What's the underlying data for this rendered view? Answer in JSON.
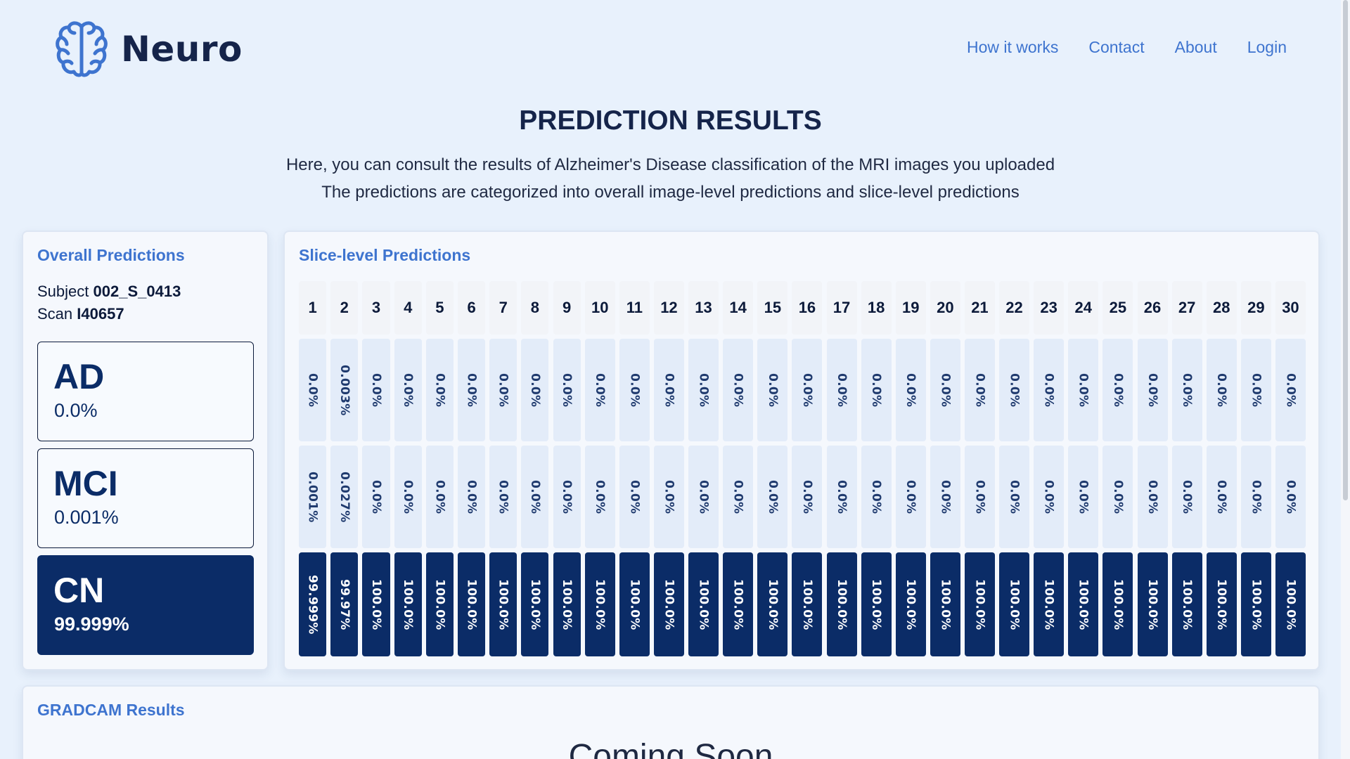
{
  "header": {
    "brand": "Neuro",
    "nav": [
      "How it works",
      "Contact",
      "About",
      "Login"
    ]
  },
  "page": {
    "title": "PREDICTION RESULTS",
    "subtitle_1": "Here, you can consult the results of Alzheimer's Disease classification of the MRI images you uploaded",
    "subtitle_2": "The predictions are categorized into overall image-level predictions and slice-level predictions"
  },
  "overall": {
    "heading": "Overall Predictions",
    "subject_label": "Subject",
    "subject_value": "002_S_0413",
    "scan_label": "Scan",
    "scan_value": "I40657",
    "predictions": [
      {
        "label": "AD",
        "value": "0.0%",
        "active": false
      },
      {
        "label": "MCI",
        "value": "0.001%",
        "active": false
      },
      {
        "label": "CN",
        "value": "99.999%",
        "active": true
      }
    ]
  },
  "slices": {
    "heading": "Slice-level Predictions",
    "columns": [
      "1",
      "2",
      "3",
      "4",
      "5",
      "6",
      "7",
      "8",
      "9",
      "10",
      "11",
      "12",
      "13",
      "14",
      "15",
      "16",
      "17",
      "18",
      "19",
      "20",
      "21",
      "22",
      "23",
      "24",
      "25",
      "26",
      "27",
      "28",
      "29",
      "30"
    ],
    "ad": [
      "0.0%",
      "0.003%",
      "0.0%",
      "0.0%",
      "0.0%",
      "0.0%",
      "0.0%",
      "0.0%",
      "0.0%",
      "0.0%",
      "0.0%",
      "0.0%",
      "0.0%",
      "0.0%",
      "0.0%",
      "0.0%",
      "0.0%",
      "0.0%",
      "0.0%",
      "0.0%",
      "0.0%",
      "0.0%",
      "0.0%",
      "0.0%",
      "0.0%",
      "0.0%",
      "0.0%",
      "0.0%",
      "0.0%",
      "0.0%"
    ],
    "mci": [
      "0.001%",
      "0.027%",
      "0.0%",
      "0.0%",
      "0.0%",
      "0.0%",
      "0.0%",
      "0.0%",
      "0.0%",
      "0.0%",
      "0.0%",
      "0.0%",
      "0.0%",
      "0.0%",
      "0.0%",
      "0.0%",
      "0.0%",
      "0.0%",
      "0.0%",
      "0.0%",
      "0.0%",
      "0.0%",
      "0.0%",
      "0.0%",
      "0.0%",
      "0.0%",
      "0.0%",
      "0.0%",
      "0.0%",
      "0.0%"
    ],
    "cn": [
      "99.999%",
      "99.97%",
      "100.0%",
      "100.0%",
      "100.0%",
      "100.0%",
      "100.0%",
      "100.0%",
      "100.0%",
      "100.0%",
      "100.0%",
      "100.0%",
      "100.0%",
      "100.0%",
      "100.0%",
      "100.0%",
      "100.0%",
      "100.0%",
      "100.0%",
      "100.0%",
      "100.0%",
      "100.0%",
      "100.0%",
      "100.0%",
      "100.0%",
      "100.0%",
      "100.0%",
      "100.0%",
      "100.0%",
      "100.0%"
    ]
  },
  "gradcam": {
    "heading": "GRADCAM Results",
    "status": "Coming Soon"
  },
  "colors": {
    "accent": "#3e74cf",
    "navy": "#0b2c67",
    "background": "#e8f1fc"
  },
  "icons": {
    "logo": "brain-icon"
  }
}
